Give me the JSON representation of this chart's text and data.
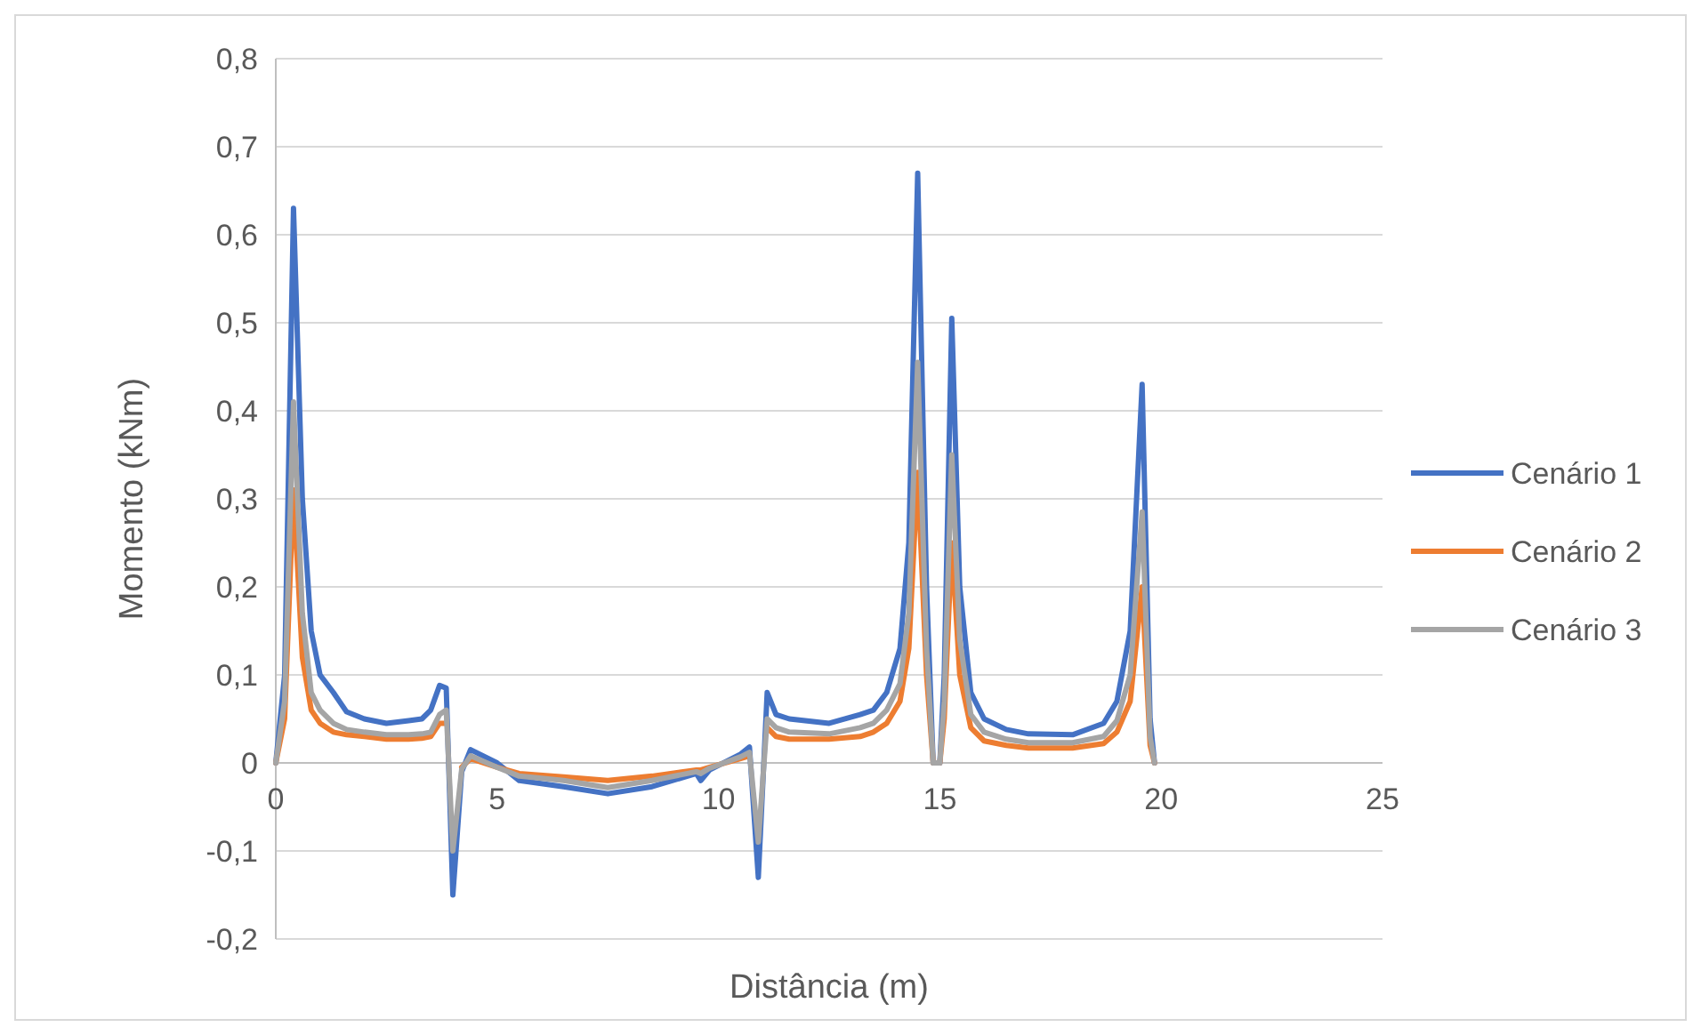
{
  "chart_data": {
    "type": "line",
    "xlabel": "Distância (m)",
    "ylabel": "Momento (kNm)",
    "x": [
      0,
      0.2,
      0.4,
      0.6,
      0.8,
      1.0,
      1.3,
      1.6,
      2.0,
      2.5,
      3.0,
      3.3,
      3.5,
      3.7,
      3.85,
      4.0,
      4.2,
      4.4,
      5.0,
      5.5,
      6.5,
      7.5,
      8.5,
      9.5,
      9.6,
      9.8,
      10.5,
      10.7,
      10.9,
      11.1,
      11.3,
      11.6,
      12.5,
      13.2,
      13.5,
      13.8,
      14.1,
      14.3,
      14.5,
      14.7,
      14.85,
      15.0,
      15.1,
      15.27,
      15.45,
      15.7,
      16.0,
      16.5,
      17.0,
      18.0,
      18.7,
      19.0,
      19.3,
      19.57,
      19.75,
      19.85
    ],
    "series": [
      {
        "name": "Cenário 1",
        "color": "#4472c4",
        "values": [
          0,
          0.1,
          0.63,
          0.3,
          0.15,
          0.1,
          0.08,
          0.058,
          0.05,
          0.045,
          0.048,
          0.05,
          0.06,
          0.088,
          0.085,
          -0.15,
          -0.01,
          0.015,
          0,
          -0.02,
          -0.027,
          -0.035,
          -0.027,
          -0.012,
          -0.02,
          -0.008,
          0.01,
          0.018,
          -0.13,
          0.08,
          0.055,
          0.05,
          0.045,
          0.055,
          0.06,
          0.08,
          0.13,
          0.25,
          0.67,
          0.2,
          0,
          0,
          0.1,
          0.505,
          0.2,
          0.08,
          0.05,
          0.038,
          0.033,
          0.032,
          0.045,
          0.07,
          0.15,
          0.43,
          0.05,
          0
        ]
      },
      {
        "name": "Cenário 2",
        "color": "#ed7d31",
        "values": [
          0,
          0.05,
          0.31,
          0.12,
          0.06,
          0.045,
          0.035,
          0.032,
          0.03,
          0.027,
          0.027,
          0.028,
          0.03,
          0.045,
          0.045,
          null,
          -0.005,
          0.005,
          -0.005,
          -0.012,
          -0.016,
          -0.02,
          -0.015,
          -0.008,
          -0.008,
          -0.005,
          0.005,
          0.008,
          null,
          0.04,
          0.03,
          0.027,
          0.027,
          0.03,
          0.035,
          0.045,
          0.07,
          0.13,
          0.33,
          0.1,
          0,
          0,
          0.05,
          0.25,
          0.1,
          0.04,
          0.025,
          0.02,
          0.017,
          0.017,
          0.022,
          0.035,
          0.07,
          0.2,
          0.02,
          0
        ]
      },
      {
        "name": "Cenário 3",
        "color": "#a5a5a5",
        "values": [
          0,
          0.07,
          0.41,
          0.17,
          0.08,
          0.06,
          0.045,
          0.038,
          0.035,
          0.032,
          0.032,
          0.033,
          0.035,
          0.055,
          0.06,
          -0.1,
          -0.007,
          0.008,
          -0.005,
          -0.015,
          -0.02,
          -0.028,
          -0.02,
          -0.01,
          -0.012,
          -0.006,
          0.007,
          0.012,
          -0.09,
          0.05,
          0.04,
          0.035,
          0.033,
          0.04,
          0.045,
          0.06,
          0.09,
          0.17,
          0.455,
          0.13,
          0,
          0,
          0.07,
          0.35,
          0.14,
          0.055,
          0.035,
          0.027,
          0.023,
          0.023,
          0.03,
          0.048,
          0.1,
          0.285,
          0.03,
          0
        ]
      }
    ],
    "xlim": [
      0,
      25
    ],
    "xticks": [
      0,
      5,
      10,
      15,
      20,
      25
    ],
    "ylim": [
      -0.2,
      0.8
    ],
    "yticks": [
      {
        "value": -0.2,
        "label": "-0,2"
      },
      {
        "value": -0.1,
        "label": "-0,1"
      },
      0,
      {
        "value": 0.1,
        "label": "0,1"
      },
      {
        "value": 0.2,
        "label": "0,2"
      },
      {
        "value": 0.3,
        "label": "0,3"
      },
      {
        "value": 0.4,
        "label": "0,4"
      },
      {
        "value": 0.5,
        "label": "0,5"
      },
      {
        "value": 0.6,
        "label": "0,6"
      },
      {
        "value": 0.7,
        "label": "0,7"
      },
      {
        "value": 0.8,
        "label": "0,8"
      }
    ],
    "grid": "y",
    "legend": "right",
    "marker": "none",
    "line_style": "solid"
  }
}
